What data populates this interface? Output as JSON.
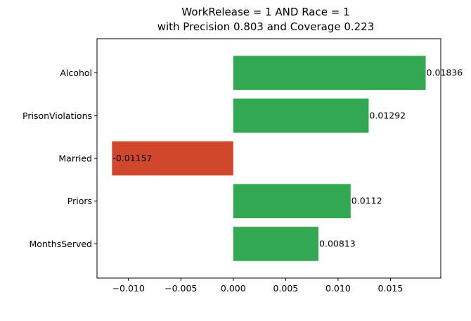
{
  "chart_data": {
    "type": "bar",
    "orientation": "horizontal",
    "title_lines": [
      "WorkRelease = 1 AND Race = 1",
      "with Precision 0.803 and Coverage 0.223"
    ],
    "categories": [
      "Alcohol",
      "PrisonViolations",
      "Married",
      "Priors",
      "MonthsServed"
    ],
    "values": [
      0.01836,
      0.01292,
      -0.01157,
      0.0112,
      0.00813
    ],
    "data_labels": [
      "0.01836",
      "0.01292",
      "-0.01157",
      "0.0112",
      "0.00813"
    ],
    "xlim": [
      -0.013,
      0.0198
    ],
    "xticks": [
      -0.01,
      -0.005,
      0.0,
      0.005,
      0.01,
      0.015
    ],
    "xtick_labels": [
      "−0.010",
      "−0.005",
      "0.000",
      "0.005",
      "0.010",
      "0.015"
    ],
    "xlabel": "",
    "ylabel": "",
    "grid": false,
    "colors": {
      "positive": "#33a852",
      "negative": "#d1472b"
    }
  }
}
